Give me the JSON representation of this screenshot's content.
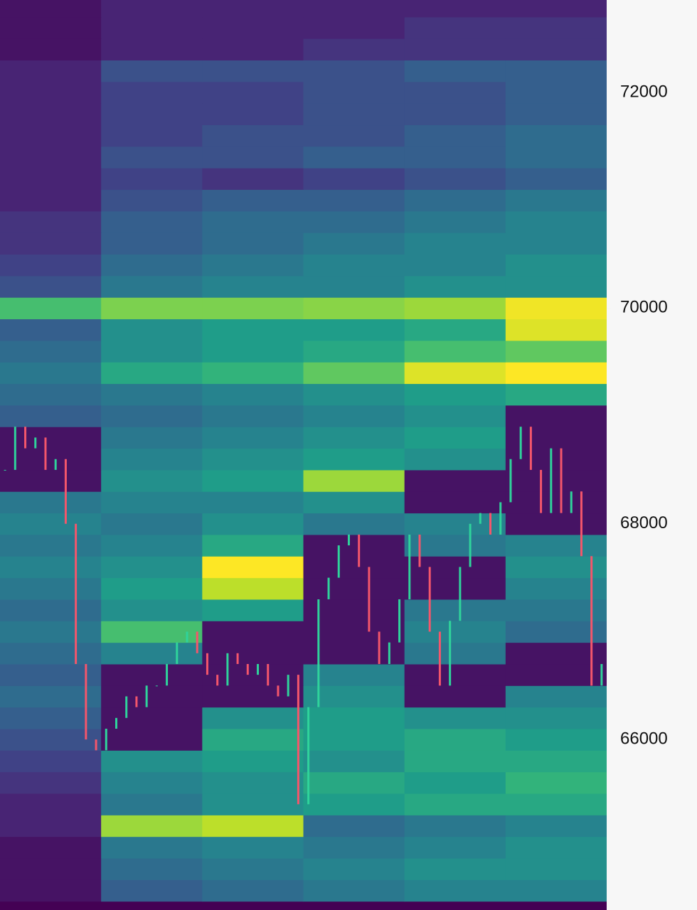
{
  "chart_data": {
    "type": "heatmap",
    "colormap": "viridis",
    "ylim": [
      64419,
      72857
    ],
    "yticks": [
      66000,
      68000,
      70000,
      72000
    ],
    "levels": [
      64600,
      64800,
      65000,
      65200,
      65400,
      65600,
      65800,
      66000,
      66200,
      66400,
      66600,
      66800,
      67000,
      67200,
      67400,
      67600,
      67800,
      68000,
      68200,
      68400,
      68600,
      68800,
      69000,
      69200,
      69400,
      69600,
      69800,
      70000,
      70200,
      70400,
      70600,
      70800,
      71000,
      71200,
      71400,
      71600,
      71800,
      72000,
      72200,
      72400,
      72600,
      72800
    ],
    "z": [
      [
        0.05,
        0.3,
        0.35,
        0.4,
        0.45,
        0.45
      ],
      [
        0.05,
        0.35,
        0.4,
        0.45,
        0.5,
        0.5
      ],
      [
        0.05,
        0.4,
        0.45,
        0.4,
        0.45,
        0.5
      ],
      [
        0.1,
        0.85,
        0.9,
        0.35,
        0.4,
        0.45
      ],
      [
        0.1,
        0.4,
        0.5,
        0.55,
        0.6,
        0.6
      ],
      [
        0.15,
        0.45,
        0.5,
        0.6,
        0.55,
        0.65
      ],
      [
        0.2,
        0.5,
        0.55,
        0.5,
        0.6,
        0.6
      ],
      [
        0.25,
        0.05,
        0.6,
        0.55,
        0.6,
        0.55
      ],
      [
        0.3,
        0.05,
        0.5,
        0.55,
        0.5,
        0.5
      ],
      [
        0.35,
        0.05,
        0.05,
        0.5,
        0.05,
        0.45
      ],
      [
        0.3,
        0.05,
        0.05,
        0.45,
        0.05,
        0.05
      ],
      [
        0.35,
        0.45,
        0.05,
        0.05,
        0.4,
        0.05
      ],
      [
        0.4,
        0.7,
        0.05,
        0.05,
        0.45,
        0.35
      ],
      [
        0.35,
        0.5,
        0.55,
        0.05,
        0.4,
        0.4
      ],
      [
        0.4,
        0.55,
        0.9,
        0.05,
        0.05,
        0.45
      ],
      [
        0.45,
        0.5,
        1.0,
        0.05,
        0.05,
        0.5
      ],
      [
        0.4,
        0.45,
        0.6,
        0.05,
        0.4,
        0.45
      ],
      [
        0.45,
        0.4,
        0.5,
        0.4,
        0.45,
        0.05
      ],
      [
        0.4,
        0.45,
        0.45,
        0.5,
        0.05,
        0.05
      ],
      [
        0.05,
        0.5,
        0.55,
        0.85,
        0.05,
        0.05
      ],
      [
        0.05,
        0.45,
        0.5,
        0.55,
        0.5,
        0.05
      ],
      [
        0.05,
        0.4,
        0.45,
        0.5,
        0.55,
        0.05
      ],
      [
        0.3,
        0.35,
        0.4,
        0.45,
        0.5,
        0.05
      ],
      [
        0.35,
        0.4,
        0.45,
        0.5,
        0.55,
        0.6
      ],
      [
        0.4,
        0.6,
        0.65,
        0.75,
        0.95,
        1.0
      ],
      [
        0.35,
        0.5,
        0.55,
        0.6,
        0.7,
        0.75
      ],
      [
        0.3,
        0.5,
        0.55,
        0.55,
        0.6,
        0.95
      ],
      [
        0.7,
        0.8,
        0.8,
        0.82,
        0.85,
        0.98
      ],
      [
        0.25,
        0.4,
        0.45,
        0.45,
        0.5,
        0.5
      ],
      [
        0.2,
        0.35,
        0.4,
        0.45,
        0.45,
        0.5
      ],
      [
        0.15,
        0.3,
        0.35,
        0.4,
        0.45,
        0.45
      ],
      [
        0.15,
        0.3,
        0.35,
        0.35,
        0.4,
        0.45
      ],
      [
        0.1,
        0.25,
        0.3,
        0.3,
        0.35,
        0.4
      ],
      [
        0.1,
        0.2,
        0.15,
        0.2,
        0.25,
        0.3
      ],
      [
        0.1,
        0.25,
        0.25,
        0.3,
        0.3,
        0.35
      ],
      [
        0.1,
        0.2,
        0.25,
        0.25,
        0.3,
        0.35
      ],
      [
        0.1,
        0.2,
        0.2,
        0.25,
        0.25,
        0.3
      ],
      [
        0.1,
        0.2,
        0.2,
        0.25,
        0.25,
        0.3
      ],
      [
        0.1,
        0.25,
        0.25,
        0.25,
        0.3,
        0.3
      ],
      [
        0.05,
        0.1,
        0.1,
        0.15,
        0.15,
        0.15
      ],
      [
        0.05,
        0.1,
        0.1,
        0.1,
        0.15,
        0.15
      ],
      [
        0.05,
        0.1,
        0.1,
        0.1,
        0.1,
        0.1
      ]
    ],
    "values": [
      68500,
      68900,
      68700,
      68800,
      68500,
      68600,
      68000,
      66700,
      66000,
      65900,
      66100,
      66200,
      66400,
      66300,
      66500,
      66500,
      66700,
      66900,
      67000,
      66800,
      66600,
      66500,
      66800,
      66700,
      66600,
      66700,
      66500,
      66400,
      66600,
      65400,
      66300,
      67300,
      67500,
      67800,
      67900,
      67600,
      67000,
      66700,
      66900,
      67300,
      67900,
      67600,
      67000,
      66500,
      67100,
      67600,
      68000,
      68100,
      67900,
      68200,
      68600,
      68900,
      68500,
      68100,
      68700,
      68100,
      68300,
      67700,
      66500,
      66700
    ],
    "up_color": "#2fd39b",
    "down_color": "#f4566b"
  }
}
